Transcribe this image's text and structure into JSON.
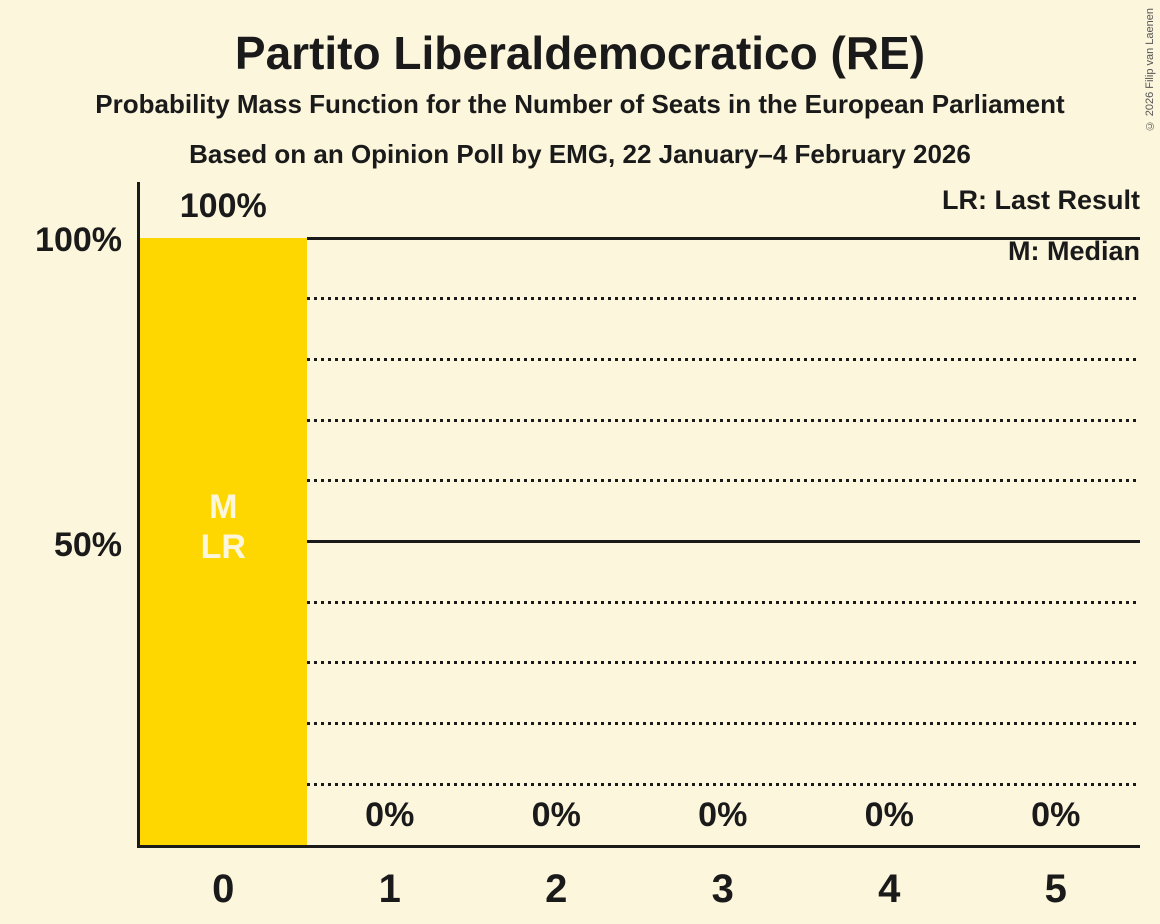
{
  "title": "Partito Liberaldemocratico (RE)",
  "subtitle": "Probability Mass Function for the Number of Seats in the European Parliament",
  "source_line": "Based on an Opinion Poll by EMG, 22 January–4 February 2026",
  "copyright": "© 2026 Filip van Laenen",
  "legend": {
    "lr": "LR: Last Result",
    "m": "M: Median"
  },
  "y_axis": {
    "labels": [
      "100%",
      "50%"
    ]
  },
  "colors": {
    "background": "#FCF6DC",
    "bar": "#FFD700",
    "text": "#1A1A1A",
    "bar_label": "#FCF6DC"
  },
  "chart_data": {
    "type": "bar",
    "title": "Partito Liberaldemocratico (RE)",
    "xlabel": "",
    "ylabel": "",
    "categories": [
      "0",
      "1",
      "2",
      "3",
      "4",
      "5"
    ],
    "values": [
      100,
      0,
      0,
      0,
      0,
      0
    ],
    "value_labels": [
      "100%",
      "0%",
      "0%",
      "0%",
      "0%",
      "0%"
    ],
    "bar_annotations": [
      {
        "category": "0",
        "lines": [
          "M",
          "LR"
        ]
      }
    ],
    "ylim": [
      0,
      100
    ],
    "gridlines": {
      "solid_at": [
        50,
        100
      ],
      "dotted_step": 10
    },
    "legend_position": "top-right",
    "legend_entries": [
      "LR: Last Result",
      "M: Median"
    ]
  }
}
